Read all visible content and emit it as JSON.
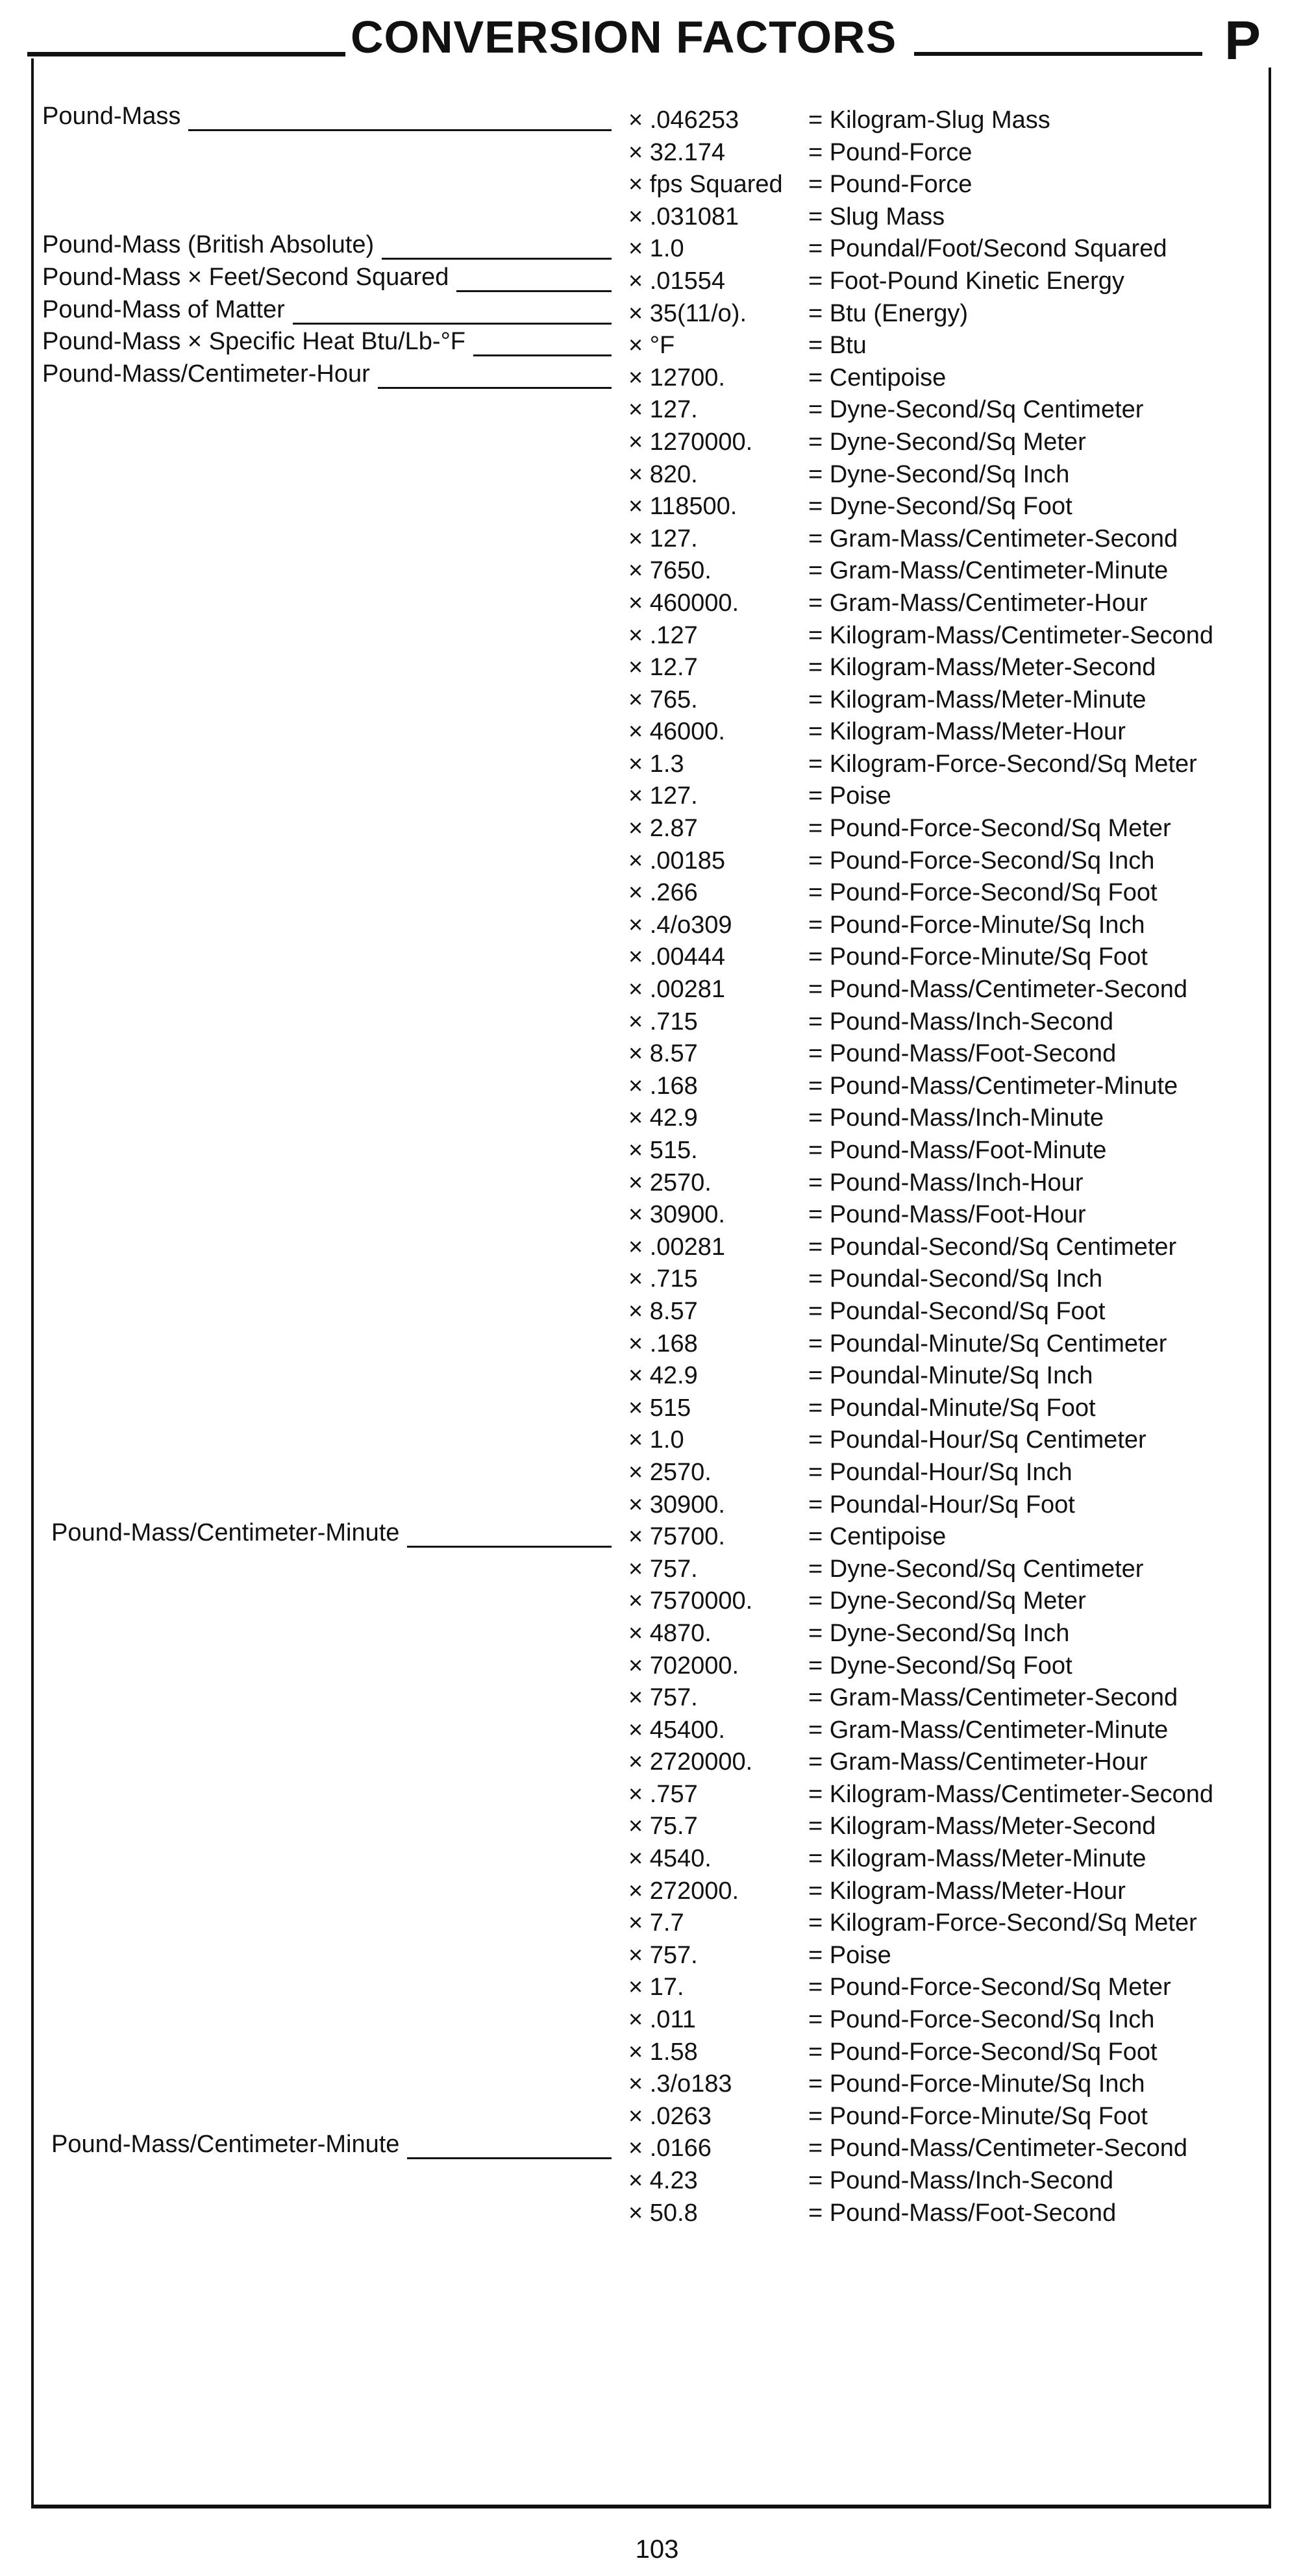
{
  "header": {
    "title": "CONVERSION FACTORS",
    "section_letter": "P"
  },
  "page_number": "103",
  "rows": [
    {
      "label": "Pound-Mass",
      "factor": "× .046253",
      "result": "= Kilogram-Slug Mass"
    },
    {
      "factor": "× 32.174",
      "result": "= Pound-Force"
    },
    {
      "factor": "× fps Squared",
      "result": "= Pound-Force"
    },
    {
      "factor": "× .031081",
      "result": "= Slug Mass"
    },
    {
      "label": "Pound-Mass (British Absolute)",
      "factor": "× 1.0",
      "result": "= Poundal/Foot/Second Squared"
    },
    {
      "label": "Pound-Mass × Feet/Second Squared",
      "factor": "× .01554",
      "result": "= Foot-Pound Kinetic Energy"
    },
    {
      "label": "Pound-Mass of Matter",
      "factor": "× 35(11/o).",
      "result": "= Btu (Energy)"
    },
    {
      "label": "Pound-Mass × Specific Heat Btu/Lb-°F",
      "factor": "× °F",
      "result": "= Btu"
    },
    {
      "label": "Pound-Mass/Centimeter-Hour",
      "factor": "× 12700.",
      "result": "= Centipoise"
    },
    {
      "factor": "× 127.",
      "result": "= Dyne-Second/Sq Centimeter"
    },
    {
      "factor": "× 1270000.",
      "result": "= Dyne-Second/Sq Meter"
    },
    {
      "factor": "× 820.",
      "result": "= Dyne-Second/Sq Inch"
    },
    {
      "factor": "× 118500.",
      "result": "= Dyne-Second/Sq Foot"
    },
    {
      "factor": "× 127.",
      "result": "= Gram-Mass/Centimeter-Second"
    },
    {
      "factor": "× 7650.",
      "result": "= Gram-Mass/Centimeter-Minute"
    },
    {
      "factor": "× 460000.",
      "result": "= Gram-Mass/Centimeter-Hour"
    },
    {
      "factor": "× .127",
      "result": "= Kilogram-Mass/Centimeter-Second"
    },
    {
      "factor": "× 12.7",
      "result": "= Kilogram-Mass/Meter-Second"
    },
    {
      "factor": "× 765.",
      "result": "= Kilogram-Mass/Meter-Minute"
    },
    {
      "factor": "× 46000.",
      "result": "= Kilogram-Mass/Meter-Hour"
    },
    {
      "factor": "× 1.3",
      "result": "= Kilogram-Force-Second/Sq Meter"
    },
    {
      "factor": "× 127.",
      "result": "= Poise"
    },
    {
      "factor": "× 2.87",
      "result": "= Pound-Force-Second/Sq Meter"
    },
    {
      "factor": "× .00185",
      "result": "= Pound-Force-Second/Sq Inch"
    },
    {
      "factor": "× .266",
      "result": "= Pound-Force-Second/Sq Foot"
    },
    {
      "factor": "× .4/o309",
      "result": "= Pound-Force-Minute/Sq Inch"
    },
    {
      "factor": "× .00444",
      "result": "= Pound-Force-Minute/Sq Foot"
    },
    {
      "factor": "× .00281",
      "result": "= Pound-Mass/Centimeter-Second"
    },
    {
      "factor": "× .715",
      "result": "= Pound-Mass/Inch-Second"
    },
    {
      "factor": "× 8.57",
      "result": "= Pound-Mass/Foot-Second"
    },
    {
      "factor": "× .168",
      "result": "= Pound-Mass/Centimeter-Minute"
    },
    {
      "factor": "× 42.9",
      "result": "= Pound-Mass/Inch-Minute"
    },
    {
      "factor": "× 515.",
      "result": "= Pound-Mass/Foot-Minute"
    },
    {
      "factor": "× 2570.",
      "result": "= Pound-Mass/Inch-Hour"
    },
    {
      "factor": "× 30900.",
      "result": "= Pound-Mass/Foot-Hour"
    },
    {
      "factor": "× .00281",
      "result": "= Poundal-Second/Sq Centimeter"
    },
    {
      "factor": "× .715",
      "result": "= Poundal-Second/Sq Inch"
    },
    {
      "factor": "× 8.57",
      "result": "= Poundal-Second/Sq Foot"
    },
    {
      "factor": "× .168",
      "result": "= Poundal-Minute/Sq Centimeter"
    },
    {
      "factor": "× 42.9",
      "result": "= Poundal-Minute/Sq Inch"
    },
    {
      "factor": "× 515",
      "result": "= Poundal-Minute/Sq Foot"
    },
    {
      "factor": "× 1.0",
      "result": "= Poundal-Hour/Sq Centimeter"
    },
    {
      "factor": "× 2570.",
      "result": "= Poundal-Hour/Sq Inch"
    },
    {
      "factor": "× 30900.",
      "result": "= Poundal-Hour/Sq Foot"
    },
    {
      "label": "Pound-Mass/Centimeter-Minute",
      "indent": true,
      "factor": "× 75700.",
      "result": "= Centipoise"
    },
    {
      "factor": "× 757.",
      "result": "= Dyne-Second/Sq Centimeter"
    },
    {
      "factor": "× 7570000.",
      "result": "= Dyne-Second/Sq Meter"
    },
    {
      "factor": "× 4870.",
      "result": "= Dyne-Second/Sq Inch"
    },
    {
      "factor": "× 702000.",
      "result": "= Dyne-Second/Sq Foot"
    },
    {
      "factor": "× 757.",
      "result": "= Gram-Mass/Centimeter-Second"
    },
    {
      "factor": "× 45400.",
      "result": "= Gram-Mass/Centimeter-Minute"
    },
    {
      "factor": "× 2720000.",
      "result": "= Gram-Mass/Centimeter-Hour"
    },
    {
      "factor": "× .757",
      "result": "= Kilogram-Mass/Centimeter-Second"
    },
    {
      "factor": "× 75.7",
      "result": "= Kilogram-Mass/Meter-Second"
    },
    {
      "factor": "× 4540.",
      "result": "= Kilogram-Mass/Meter-Minute"
    },
    {
      "factor": "× 272000.",
      "result": "= Kilogram-Mass/Meter-Hour"
    },
    {
      "factor": "× 7.7",
      "result": "= Kilogram-Force-Second/Sq Meter"
    },
    {
      "factor": "× 757.",
      "result": "= Poise"
    },
    {
      "factor": "× 17.",
      "result": "= Pound-Force-Second/Sq Meter"
    },
    {
      "factor": "× .011",
      "result": "= Pound-Force-Second/Sq Inch"
    },
    {
      "factor": "× 1.58",
      "result": "= Pound-Force-Second/Sq Foot"
    },
    {
      "factor": "× .3/o183",
      "result": "= Pound-Force-Minute/Sq Inch"
    },
    {
      "factor": "× .0263",
      "result": "= Pound-Force-Minute/Sq Foot"
    },
    {
      "label": "Pound-Mass/Centimeter-Minute",
      "indent": true,
      "factor": "× .0166",
      "result": "= Pound-Mass/Centimeter-Second"
    },
    {
      "factor": "× 4.23",
      "result": "= Pound-Mass/Inch-Second"
    },
    {
      "factor": "× 50.8",
      "result": "= Pound-Mass/Foot-Second"
    }
  ]
}
